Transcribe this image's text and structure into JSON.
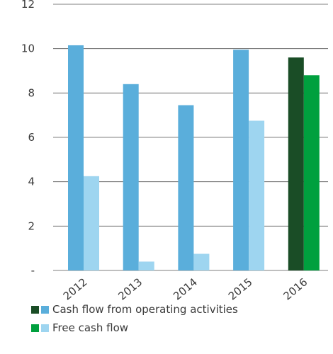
{
  "chart_data": {
    "type": "bar",
    "categories": [
      "2012",
      "2013",
      "2014",
      "2015",
      "2016"
    ],
    "series": [
      {
        "name": "Cash flow from operating activities",
        "values": [
          10.15,
          8.4,
          7.45,
          9.95,
          9.6
        ]
      },
      {
        "name": "Free cash flow",
        "values": [
          4.25,
          0.4,
          0.75,
          6.75,
          8.8
        ]
      }
    ],
    "ylim": [
      0,
      12
    ],
    "yticks": [
      0,
      2,
      4,
      6,
      8,
      10,
      12
    ],
    "ytick_labels": [
      "-",
      "2",
      "4",
      "6",
      "8",
      "10",
      "12"
    ],
    "grid": true,
    "legend_position": "bottom-left",
    "colors": {
      "historic": [
        "#5aaedb",
        "#9ed5f0"
      ],
      "current": [
        "#1a4d26",
        "#00a03e"
      ],
      "grid": "#555555",
      "text": "#3a3a3a"
    },
    "highlight_category": "2016"
  }
}
